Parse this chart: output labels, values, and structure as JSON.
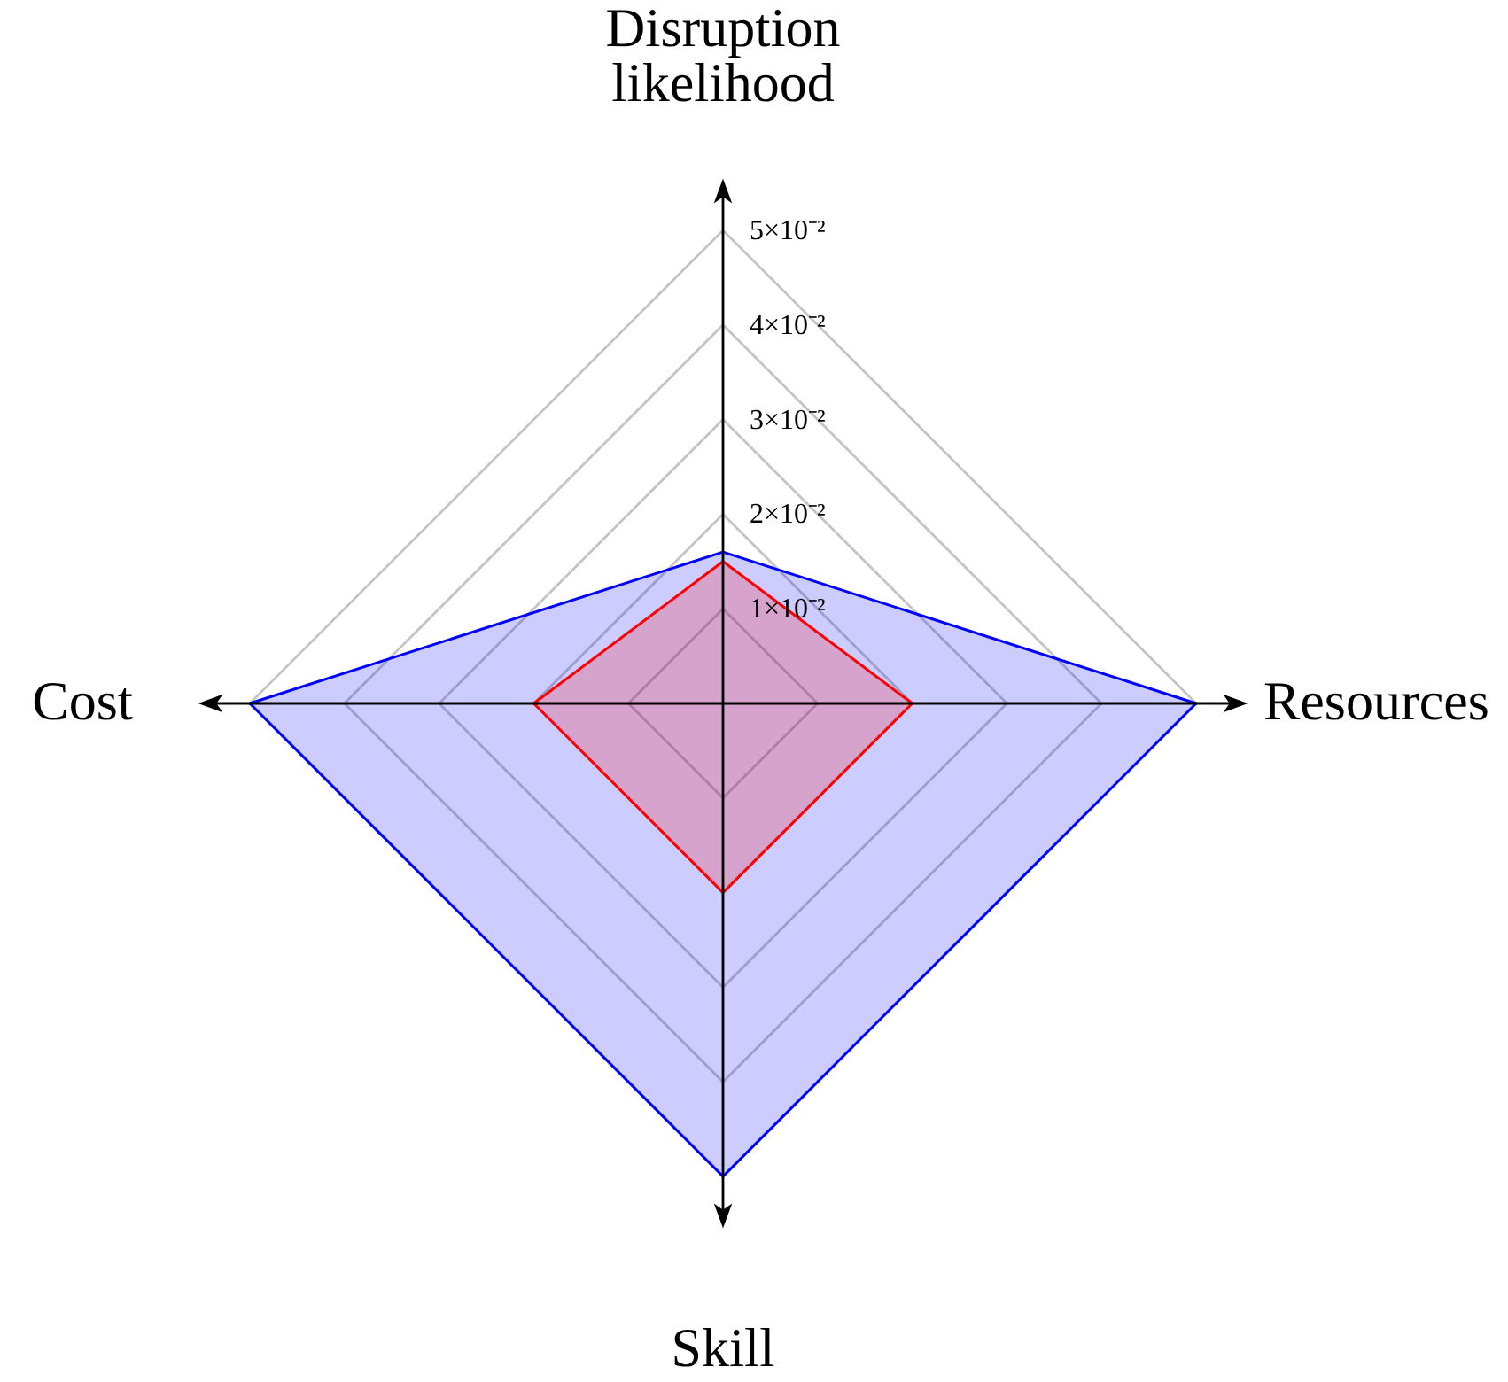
{
  "chart_data": {
    "type": "radar",
    "categories": [
      "Disruption likelihood",
      "Resources",
      "Skill",
      "Cost"
    ],
    "series": [
      {
        "color": "#0000ff",
        "values": [
          0.016,
          0.05,
          0.05,
          0.05
        ]
      },
      {
        "color": "#ff0000",
        "values": [
          0.015,
          0.02,
          0.02,
          0.02
        ]
      }
    ],
    "ylim": [
      0,
      0.05
    ],
    "yticks": [
      {
        "value": 0.01,
        "label": "1×10⁻²"
      },
      {
        "value": 0.02,
        "label": "2×10⁻²"
      },
      {
        "value": 0.03,
        "label": "3×10⁻²"
      },
      {
        "value": 0.04,
        "label": "4×10⁻²"
      },
      {
        "value": 0.05,
        "label": "5×10⁻²"
      }
    ],
    "grid": true
  }
}
